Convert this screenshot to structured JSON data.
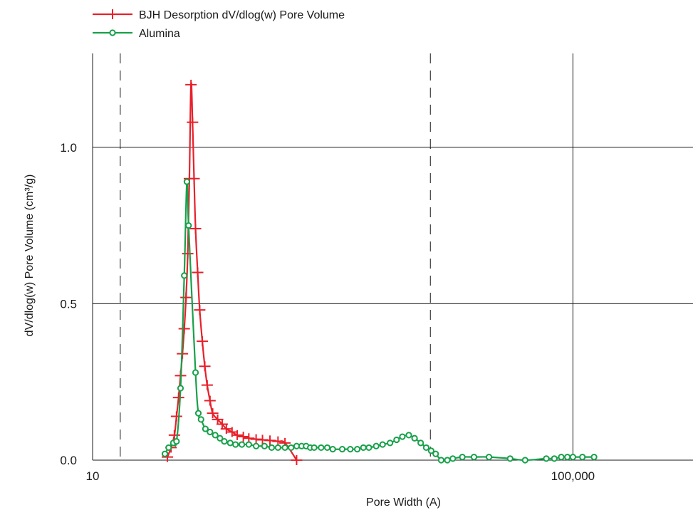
{
  "chart_data": {
    "type": "line",
    "title": "",
    "xlabel": "Pore Width (A)",
    "ylabel": "dV/dlog(w) Pore Volume (cm³/g)",
    "x_scale": "log",
    "xlim": [
      10,
      1000000
    ],
    "ylim": [
      0,
      1.3
    ],
    "x_ticks": [
      {
        "value": 10,
        "label": "10"
      },
      {
        "value": 100000,
        "label": "100,000"
      }
    ],
    "y_ticks": [
      {
        "value": 0,
        "label": "0.0"
      },
      {
        "value": 0.5,
        "label": "0.5"
      },
      {
        "value": 1.0,
        "label": "1.0"
      }
    ],
    "gridlines": {
      "solid_x": [
        100000
      ],
      "dashed_x": [
        17,
        6500
      ],
      "solid_y": [
        0.5,
        1.0
      ]
    },
    "legend_position": "top-left, above plot",
    "series": [
      {
        "name": "BJH Desorption dV/dlog(w) Pore Volume",
        "color": "#e8202a",
        "marker": "plus",
        "x": [
          42,
          45,
          48,
          50,
          52,
          54,
          56,
          58,
          60,
          62,
          64,
          66,
          68,
          70,
          72,
          75,
          78,
          82,
          86,
          90,
          95,
          100,
          110,
          120,
          130,
          145,
          160,
          180,
          200,
          230,
          260,
          300,
          350,
          400,
          500
        ],
        "y": [
          0.01,
          0.04,
          0.08,
          0.14,
          0.2,
          0.27,
          0.34,
          0.42,
          0.52,
          0.66,
          0.9,
          1.2,
          1.08,
          0.9,
          0.74,
          0.6,
          0.48,
          0.38,
          0.3,
          0.24,
          0.19,
          0.15,
          0.13,
          0.115,
          0.1,
          0.09,
          0.08,
          0.075,
          0.07,
          0.067,
          0.065,
          0.063,
          0.06,
          0.055,
          0.0
        ]
      },
      {
        "name": "Alumina",
        "color": "#18a04a",
        "marker": "circle",
        "x": [
          40,
          43,
          47,
          50,
          54,
          58,
          61,
          63,
          72,
          76,
          80,
          87,
          95,
          105,
          115,
          125,
          140,
          155,
          175,
          200,
          230,
          270,
          310,
          350,
          400,
          450,
          500,
          550,
          600,
          650,
          700,
          800,
          900,
          1000,
          1200,
          1400,
          1600,
          1800,
          2000,
          2300,
          2600,
          3000,
          3400,
          3800,
          4300,
          4800,
          5400,
          6000,
          6600,
          7200,
          8000,
          9000,
          10000,
          12000,
          15000,
          20000,
          30000,
          40000,
          60000,
          70000,
          80000,
          90000,
          100000,
          120000,
          150000
        ],
        "y": [
          0.02,
          0.04,
          0.055,
          0.06,
          0.23,
          0.59,
          0.89,
          0.75,
          0.28,
          0.15,
          0.13,
          0.1,
          0.09,
          0.08,
          0.07,
          0.06,
          0.055,
          0.05,
          0.05,
          0.05,
          0.045,
          0.045,
          0.04,
          0.04,
          0.04,
          0.04,
          0.045,
          0.045,
          0.045,
          0.04,
          0.04,
          0.04,
          0.04,
          0.035,
          0.035,
          0.035,
          0.035,
          0.04,
          0.04,
          0.045,
          0.05,
          0.055,
          0.065,
          0.075,
          0.08,
          0.07,
          0.055,
          0.04,
          0.03,
          0.02,
          0.0,
          0.0,
          0.005,
          0.01,
          0.01,
          0.01,
          0.005,
          0.0,
          0.005,
          0.005,
          0.01,
          0.01,
          0.01,
          0.01,
          0.01
        ]
      }
    ]
  }
}
